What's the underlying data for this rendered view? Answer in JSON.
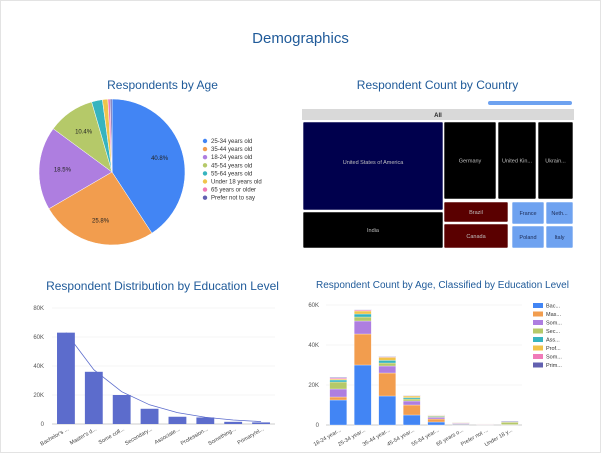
{
  "dashboard": {
    "title": "Demographics"
  },
  "colors": {
    "title": "#1f5a99",
    "bar": "#5c6ccc",
    "treemap_dark": "#000000",
    "treemap_navy": "#00004d",
    "treemap_maroon": "#5a0000",
    "treemap_light": "#6ea2f0",
    "treemap_header": "#d9d9d9"
  },
  "chart_data": [
    {
      "id": "age-pie",
      "type": "pie",
      "title": "Respondents by Age",
      "legend_position": "right",
      "slices": [
        {
          "label": "25-34 years old",
          "value": 40.8,
          "color": "#4285f4",
          "data_label": "40.8%"
        },
        {
          "label": "35-44 years old",
          "value": 25.8,
          "color": "#f29d4e",
          "data_label": "25.8%"
        },
        {
          "label": "18-24 years old",
          "value": 18.5,
          "color": "#ae7ee0",
          "data_label": "18.5%"
        },
        {
          "label": "45-54 years old",
          "value": 10.4,
          "color": "#b5c969",
          "data_label": "10.4%"
        },
        {
          "label": "55-64 years old",
          "value": 2.4,
          "color": "#36b4bf",
          "data_label": ""
        },
        {
          "label": "Under 18 years old",
          "value": 1.2,
          "color": "#f0c44b",
          "data_label": ""
        },
        {
          "label": "65 years or older",
          "value": 0.5,
          "color": "#f07ab8",
          "data_label": ""
        },
        {
          "label": "Prefer not to say",
          "value": 0.4,
          "color": "#6260b0",
          "data_label": ""
        }
      ]
    },
    {
      "id": "country-treemap",
      "type": "treemap",
      "title": "Respondent Count by Country",
      "root_label": "All",
      "nodes": [
        {
          "label": "United States of America",
          "shade": "navy"
        },
        {
          "label": "Germany",
          "shade": "dark"
        },
        {
          "label": "United Kin...",
          "shade": "dark"
        },
        {
          "label": "Ukrain...",
          "shade": "dark"
        },
        {
          "label": "India",
          "shade": "dark"
        },
        {
          "label": "Brazil",
          "shade": "maroon"
        },
        {
          "label": "Canada",
          "shade": "maroon"
        },
        {
          "label": "France",
          "shade": "light"
        },
        {
          "label": "Neth...",
          "shade": "light"
        },
        {
          "label": "Poland",
          "shade": "light"
        },
        {
          "label": "Italy",
          "shade": "light"
        }
      ]
    },
    {
      "id": "education-bar",
      "type": "bar",
      "title": "Respondent Distribution by Education Level",
      "categories": [
        "Bachelor's ...",
        "Master's d...",
        "Some coll...",
        "Secondary...",
        "Associate...",
        "Profession...",
        "Something...",
        "Primary/el..."
      ],
      "values": [
        63000,
        36000,
        20000,
        10500,
        5000,
        4500,
        1500,
        1100
      ],
      "yticks": [
        "0",
        "20K",
        "40K",
        "60K",
        "80K"
      ],
      "ylim": [
        0,
        80000
      ],
      "trendline": true
    },
    {
      "id": "age-education-stacked",
      "type": "bar",
      "stacked": true,
      "title": "Respondent Count by Age, Classified by Education Level",
      "categories": [
        "18-24 year...",
        "25-34 year...",
        "35-44 year...",
        "45-54 year...",
        "55-64 year...",
        "65 years o...",
        "Prefer not ...",
        "Under 18 y..."
      ],
      "yticks": [
        "0",
        "20K",
        "40K",
        "60K"
      ],
      "ylim": [
        0,
        60000
      ],
      "legend_position": "right",
      "series": [
        {
          "name": "Bac...",
          "color": "#4285f4",
          "values": [
            12500,
            30000,
            14500,
            5000,
            1500,
            300,
            200,
            100
          ]
        },
        {
          "name": "Mas...",
          "color": "#f29d4e",
          "values": [
            1500,
            15500,
            11500,
            5000,
            1500,
            400,
            200,
            0
          ]
        },
        {
          "name": "Som...",
          "color": "#ae7ee0",
          "values": [
            4000,
            6500,
            3500,
            2000,
            800,
            300,
            100,
            100
          ]
        },
        {
          "name": "Sec...",
          "color": "#b5c969",
          "values": [
            3500,
            2000,
            1500,
            1000,
            500,
            100,
            100,
            1200
          ]
        },
        {
          "name": "Ass...",
          "color": "#36b4bf",
          "values": [
            1000,
            1500,
            1300,
            700,
            300,
            100,
            0,
            0
          ]
        },
        {
          "name": "Prof...",
          "color": "#f0c44b",
          "values": [
            500,
            1500,
            1500,
            800,
            300,
            100,
            0,
            0
          ]
        },
        {
          "name": "Som...",
          "color": "#f07ab8",
          "values": [
            500,
            500,
            300,
            200,
            100,
            0,
            0,
            100
          ]
        },
        {
          "name": "Prim...",
          "color": "#6260b0",
          "values": [
            300,
            200,
            200,
            100,
            100,
            0,
            0,
            300
          ]
        }
      ]
    }
  ]
}
